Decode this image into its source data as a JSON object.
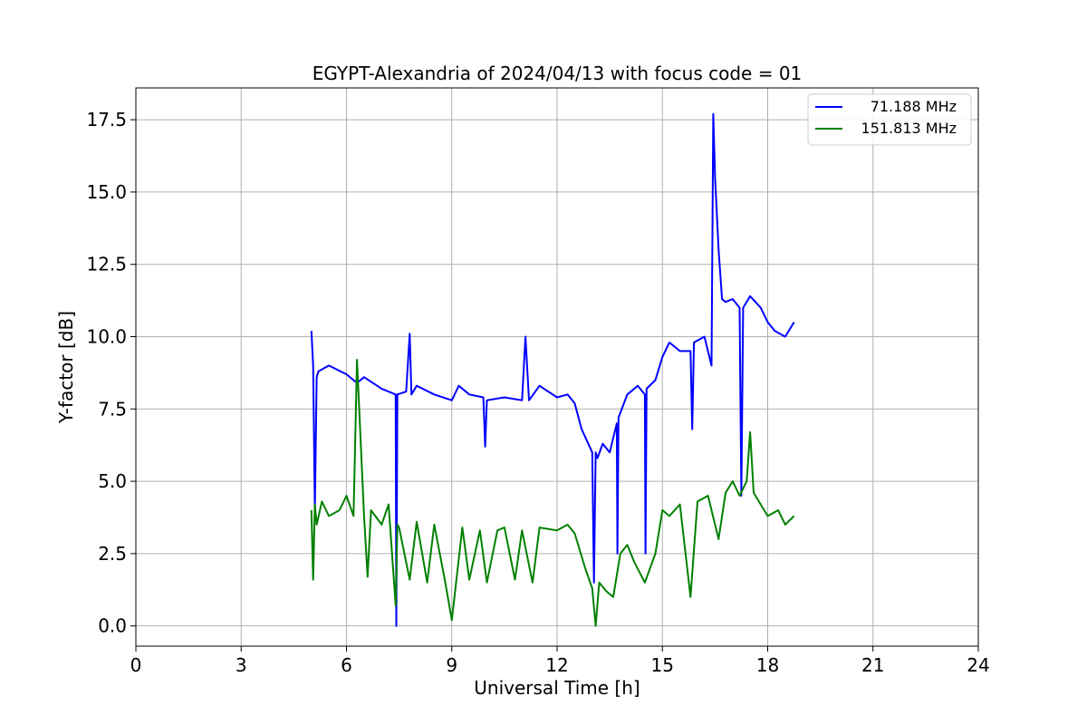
{
  "chart_data": {
    "type": "line",
    "title": "EGYPT-Alexandria of 2024/04/13 with focus code = 01",
    "xlabel": "Universal Time [h]",
    "ylabel": "Y-factor [dB]",
    "xlim": [
      0,
      24
    ],
    "ylim": [
      -0.7,
      18.6
    ],
    "xticks": [
      0,
      3,
      6,
      9,
      12,
      15,
      18,
      21,
      24
    ],
    "xtick_labels": [
      "0",
      "3",
      "6",
      "9",
      "12",
      "15",
      "18",
      "21",
      "24"
    ],
    "yticks": [
      0.0,
      2.5,
      5.0,
      7.5,
      10.0,
      12.5,
      15.0,
      17.5
    ],
    "ytick_labels": [
      "0.0",
      "2.5",
      "5.0",
      "7.5",
      "10.0",
      "12.5",
      "15.0",
      "17.5"
    ],
    "grid": true,
    "legend_position": "top-right",
    "series": [
      {
        "name": "71.188 MHz",
        "color": "#0000ff",
        "x": [
          5.0,
          5.05,
          5.1,
          5.15,
          5.2,
          5.5,
          6.0,
          6.3,
          6.5,
          7.0,
          7.4,
          7.42,
          7.45,
          7.7,
          7.8,
          7.85,
          8.0,
          8.5,
          9.0,
          9.2,
          9.5,
          9.9,
          9.95,
          10.0,
          10.5,
          11.0,
          11.1,
          11.2,
          11.5,
          12.0,
          12.3,
          12.5,
          12.7,
          13.0,
          13.05,
          13.1,
          13.15,
          13.3,
          13.5,
          13.7,
          13.72,
          13.75,
          14.0,
          14.3,
          14.5,
          14.52,
          14.55,
          14.8,
          15.0,
          15.2,
          15.5,
          15.8,
          15.85,
          15.9,
          16.2,
          16.4,
          16.45,
          16.5,
          16.6,
          16.7,
          16.8,
          17.0,
          17.2,
          17.25,
          17.3,
          17.5,
          17.8,
          18.0,
          18.2,
          18.5,
          18.75
        ],
        "y": [
          10.2,
          9.0,
          4.0,
          8.6,
          8.8,
          9.0,
          8.7,
          8.4,
          8.6,
          8.2,
          8.0,
          0.0,
          8.0,
          8.1,
          10.1,
          8.0,
          8.3,
          8.0,
          7.8,
          8.3,
          8.0,
          7.9,
          6.2,
          7.8,
          7.9,
          7.8,
          10.0,
          7.8,
          8.3,
          7.9,
          8.0,
          7.7,
          6.8,
          6.0,
          1.5,
          6.0,
          5.8,
          6.3,
          6.0,
          7.0,
          2.5,
          7.2,
          8.0,
          8.3,
          8.0,
          2.5,
          8.2,
          8.5,
          9.3,
          9.8,
          9.5,
          9.5,
          6.8,
          9.8,
          10.0,
          9.0,
          17.7,
          15.5,
          13.0,
          11.3,
          11.2,
          11.3,
          11.0,
          4.5,
          11.0,
          11.4,
          11.0,
          10.5,
          10.2,
          10.0,
          10.5
        ]
      },
      {
        "name": "151.813 MHz",
        "color": "#008000",
        "x": [
          5.0,
          5.05,
          5.1,
          5.15,
          5.3,
          5.5,
          5.8,
          6.0,
          6.2,
          6.3,
          6.5,
          6.6,
          6.7,
          7.0,
          7.2,
          7.4,
          7.45,
          7.5,
          7.8,
          8.0,
          8.3,
          8.5,
          8.8,
          9.0,
          9.3,
          9.5,
          9.8,
          10.0,
          10.3,
          10.5,
          10.8,
          11.0,
          11.3,
          11.5,
          12.0,
          12.3,
          12.5,
          12.8,
          13.0,
          13.1,
          13.2,
          13.4,
          13.6,
          13.8,
          14.0,
          14.2,
          14.5,
          14.8,
          15.0,
          15.2,
          15.5,
          15.8,
          16.0,
          16.3,
          16.6,
          16.8,
          17.0,
          17.2,
          17.4,
          17.5,
          17.6,
          17.8,
          18.0,
          18.3,
          18.5,
          18.75
        ],
        "y": [
          4.0,
          1.6,
          4.2,
          3.5,
          4.3,
          3.8,
          4.0,
          4.5,
          3.8,
          9.2,
          3.8,
          1.7,
          4.0,
          3.5,
          4.2,
          0.7,
          3.5,
          3.4,
          1.6,
          3.6,
          1.5,
          3.5,
          1.6,
          0.2,
          3.4,
          1.6,
          3.3,
          1.5,
          3.3,
          3.4,
          1.6,
          3.3,
          1.5,
          3.4,
          3.3,
          3.5,
          3.2,
          2.0,
          1.3,
          0.0,
          1.5,
          1.2,
          1.0,
          2.5,
          2.8,
          2.2,
          1.5,
          2.5,
          4.0,
          3.8,
          4.2,
          1.0,
          4.3,
          4.5,
          3.0,
          4.6,
          5.0,
          4.5,
          5.0,
          6.7,
          4.6,
          4.2,
          3.8,
          4.0,
          3.5,
          3.8
        ]
      }
    ]
  }
}
